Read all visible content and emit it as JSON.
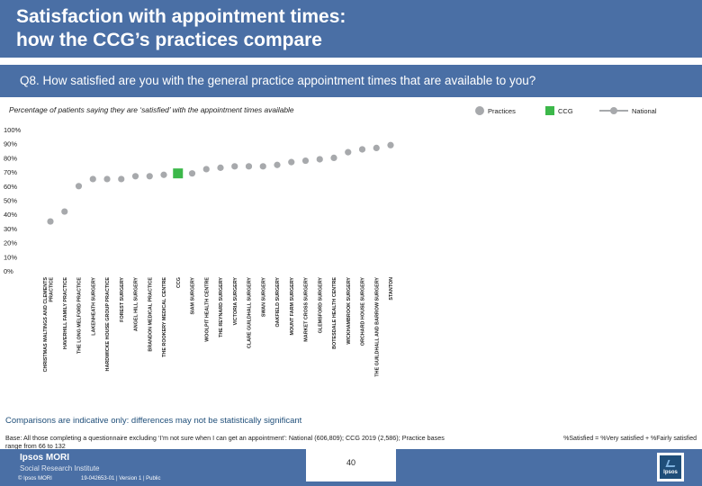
{
  "header": {
    "title": "Satisfaction with appointment times:\nhow the CCG’s practices compare"
  },
  "question": {
    "text": "Q8. How satisfied are you with the general practice appointment times that are available to you?"
  },
  "subtitle": "Percentage of patients saying they are ‘satisfied’ with the appointment times available",
  "legend": {
    "practices": "Practices",
    "ccg": "CCG",
    "national": "National"
  },
  "colors": {
    "header": "#4a6fa5",
    "practice": "#a7a9ac",
    "ccg": "#3cb84a",
    "national": "#a7a9ac"
  },
  "chart_data": {
    "type": "scatter",
    "title": "Percentage of patients saying they are ‘satisfied’ with the appointment times available",
    "ylim": [
      0,
      100
    ],
    "ytick_labels": [
      "100%",
      "90%",
      "80%",
      "70%",
      "60%",
      "50%",
      "40%",
      "30%",
      "20%",
      "10%",
      "0%"
    ],
    "ytick_values": [
      100,
      90,
      80,
      70,
      60,
      50,
      40,
      30,
      20,
      10,
      0
    ],
    "grid": false,
    "legend_position": "top-right",
    "categories": [
      "CHRISTMAS MALTINGS AND CLEMENTS PRACTICE",
      "HAVERHILL FAMILY PRACTICE",
      "THE LONG MELFORD PRACTICE",
      "LAKENHEATH SURGERY",
      "HARDWICKE HOUSE GROUP PRACTICE",
      "FOREST SURGERY",
      "ANGEL HILL SURGERY",
      "BRANDON MEDICAL PRACTICE",
      "THE ROOKERY MEDICAL CENTRE",
      "CCG",
      "SIAM SURGERY",
      "WOOLPIT HEALTH CENTRE",
      "THE REYNARD SURGERY",
      "VICTORIA SURGERY",
      "CLARE GUILDHALL SURGERY",
      "SWAN SURGERY",
      "OAKFIELD SURGERY",
      "MOUNT FARM SURGERY",
      "MARKET CROSS SURGERY",
      "GLEMSFORD SURGERY",
      "BOTESDALE HEALTH CENTRE",
      "WICKHAMBROOK SURGERY",
      "ORCHARD HOUSE SURGERY",
      "THE GUILDHALL AND BARROW SURGERY",
      "STANTON"
    ],
    "series": [
      {
        "name": "Practices",
        "values": [
          35,
          42,
          60,
          65,
          65,
          65,
          67,
          67,
          68,
          null,
          69,
          72,
          73,
          74,
          74,
          74,
          75,
          77,
          78,
          79,
          80,
          84,
          86,
          87,
          89
        ]
      },
      {
        "name": "CCG",
        "values": [
          null,
          null,
          null,
          null,
          null,
          null,
          null,
          null,
          null,
          69,
          null,
          null,
          null,
          null,
          null,
          null,
          null,
          null,
          null,
          null,
          null,
          null,
          null,
          null,
          null
        ]
      }
    ]
  },
  "notes": {
    "comparisons": "Comparisons are indicative only: differences may not be statistically significant",
    "base": "Base: All those completing a questionnaire excluding ‘I’m not sure when I can get an appointment’: National (606,809); CCG 2019 (2,586); Practice bases range from 66 to 132",
    "satisfied_def": "%Satisfied = %Very satisfied + %Fairly satisfied"
  },
  "footer": {
    "logo_name": "Ipsos MORI",
    "logo_sub": "Social Research Institute",
    "copyright": "© Ipsos MORI",
    "reference": "19-042653-01 | Version 1 | Public",
    "page_number": "40",
    "badge": "Ipsos"
  }
}
